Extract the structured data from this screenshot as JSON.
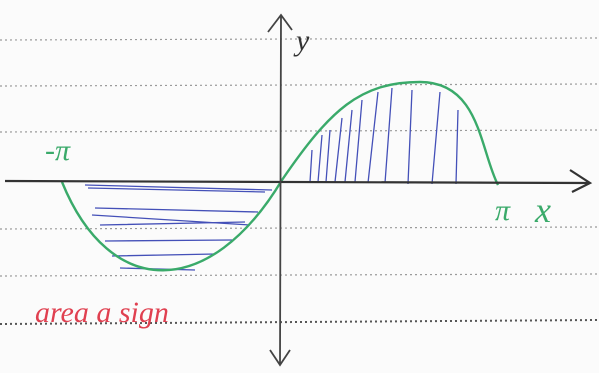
{
  "labels": {
    "y_axis": "y",
    "neg_pi": "-π",
    "pi": "π",
    "x_axis": "x"
  },
  "note": "area a sign"
}
